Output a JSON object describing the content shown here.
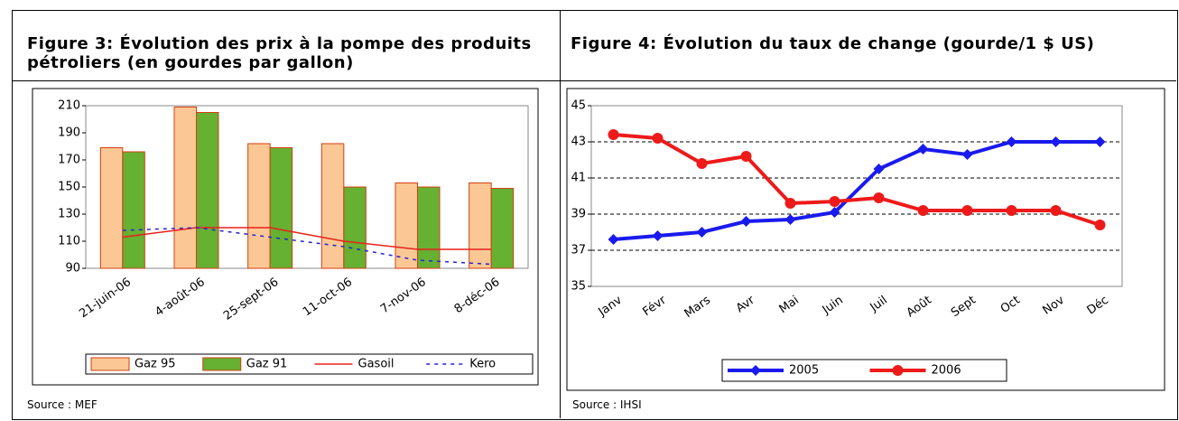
{
  "chart_data": [
    {
      "type": "bar",
      "title": "Figure 3: Évolution des prix à la pompe des produits pétroliers (en gourdes par gallon)",
      "source": "Source : MEF",
      "categories": [
        "21-juin-06",
        "4-août-06",
        "25-sept-06",
        "11-oct-06",
        "7-nov-06",
        "8-déc-06"
      ],
      "series": [
        {
          "name": "Gaz 95",
          "kind": "bar",
          "color": "#fbc795",
          "values": [
            179,
            209,
            182,
            182,
            153,
            153
          ]
        },
        {
          "name": "Gaz 91",
          "kind": "bar",
          "color": "#66b032",
          "values": [
            176,
            205,
            179,
            150,
            150,
            149
          ]
        },
        {
          "name": "Gasoil",
          "kind": "line",
          "dash": false,
          "color": "#e8201c",
          "values": [
            113,
            120,
            120,
            110,
            104,
            104
          ]
        },
        {
          "name": "Kero",
          "kind": "line",
          "dash": true,
          "color": "#2424d8",
          "values": [
            118,
            120,
            113,
            106,
            96,
            93
          ]
        }
      ],
      "ylim": [
        90,
        210
      ],
      "yticks": [
        90,
        110,
        130,
        150,
        170,
        190,
        210
      ],
      "grid": false,
      "legend": "bottom"
    },
    {
      "type": "line",
      "title": "Figure 4: Évolution du taux de change (gourde/1 $ US)",
      "source": "Source : IHSI",
      "categories": [
        "Janv",
        "Févr",
        "Mars",
        "Avr",
        "Mai",
        "Juin",
        "Juil",
        "Août",
        "Sept",
        "Oct",
        "Nov",
        "Déc"
      ],
      "series": [
        {
          "name": "2005",
          "color": "#1a1aee",
          "marker": "diamond",
          "values": [
            37.6,
            37.8,
            38.0,
            38.6,
            38.7,
            39.1,
            41.5,
            42.6,
            42.3,
            43.0,
            43.0,
            43.0
          ]
        },
        {
          "name": "2006",
          "color": "#ee1a1a",
          "marker": "circle",
          "values": [
            43.4,
            43.2,
            41.8,
            42.2,
            39.6,
            39.7,
            39.9,
            39.2,
            39.2,
            39.2,
            39.2,
            38.4
          ]
        }
      ],
      "ylim": [
        35,
        45
      ],
      "yticks": [
        35,
        37,
        39,
        41,
        43,
        45
      ],
      "grid": true,
      "legend": "bottom"
    }
  ]
}
